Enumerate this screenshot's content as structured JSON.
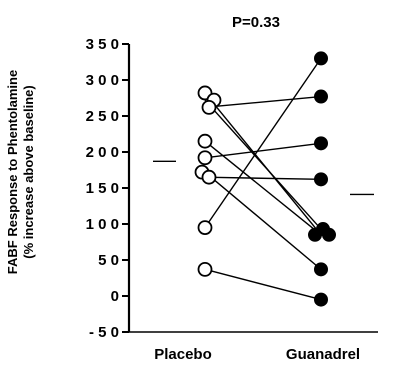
{
  "chart_data": {
    "type": "scatter",
    "title": "P=0.33",
    "xlabel": "",
    "ylabel_line1": "FABF Response to Phentolamine",
    "ylabel_line2": "(% increase above baseline)",
    "categories": [
      "Placebo",
      "Guanadrel"
    ],
    "ylim": [
      -50,
      350
    ],
    "yticks": [
      -50,
      0,
      50,
      100,
      150,
      200,
      250,
      300,
      350
    ],
    "ytick_labels": [
      "- 5 0",
      "0",
      "5 0",
      "1 0 0",
      "1 5 0",
      "2 0 0",
      "2 5 0",
      "3 0 0",
      "3 5 0"
    ],
    "grid": false,
    "series": [
      {
        "marker": "open-circle",
        "category": "Placebo",
        "values": [
          282,
          272,
          262,
          215,
          192,
          172,
          165,
          95,
          37
        ]
      },
      {
        "marker": "filled-circle",
        "category": "Guanadrel",
        "values": [
          330,
          277,
          212,
          162,
          93,
          85,
          85,
          37,
          -5
        ]
      }
    ],
    "pairs": [
      [
        282,
        85
      ],
      [
        272,
        93
      ],
      [
        262,
        277
      ],
      [
        215,
        85
      ],
      [
        192,
        212
      ],
      [
        172,
        37
      ],
      [
        165,
        162
      ],
      [
        95,
        330
      ],
      [
        37,
        -5
      ]
    ],
    "means": {
      "Placebo": 187,
      "Guanadrel": 141
    }
  }
}
